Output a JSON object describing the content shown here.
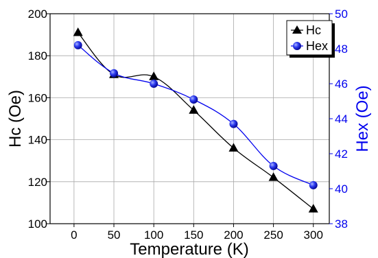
{
  "chart_data": {
    "type": "line",
    "xlabel": "Temperature (K)",
    "ylabel_left": "Hc (Oe)",
    "ylabel_right": "Hex (Oe)",
    "xlim": [
      -30,
      320
    ],
    "x_ticks": [
      0,
      50,
      100,
      150,
      200,
      250,
      300
    ],
    "ylim_left": [
      100,
      200
    ],
    "y_ticks_left": [
      100,
      120,
      140,
      160,
      180,
      200
    ],
    "ylim_right": [
      38,
      50
    ],
    "y_ticks_right": [
      38,
      40,
      42,
      44,
      46,
      48,
      50
    ],
    "grid": true,
    "legend_position": "top-right",
    "series": [
      {
        "name": "Hc",
        "axis": "left",
        "marker": "triangle",
        "color": "#000000",
        "x": [
          5,
          50,
          100,
          150,
          200,
          250,
          300
        ],
        "values": [
          191,
          171,
          170,
          154,
          136,
          122,
          107
        ]
      },
      {
        "name": "Hex",
        "axis": "right",
        "marker": "circle",
        "color": "#0000ee",
        "x": [
          5,
          50,
          100,
          150,
          200,
          250,
          300
        ],
        "values": [
          48.2,
          46.6,
          46.0,
          45.1,
          43.7,
          41.3,
          40.2
        ]
      }
    ]
  }
}
